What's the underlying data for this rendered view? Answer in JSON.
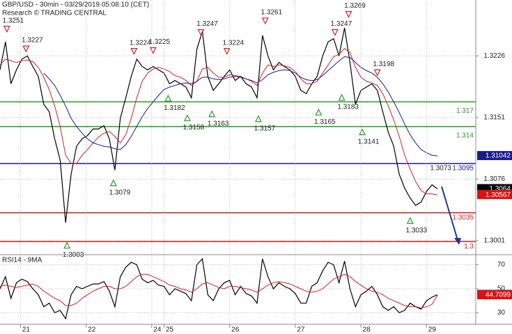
{
  "chart_data": [
    {
      "type": "line",
      "title": "GBP/USD - 30min - 03/29/2019 05:08:10 (CET)",
      "subtitle": "Research © TRADING CENTRAL",
      "xlim": [
        0,
        348
      ],
      "ylim": [
        1.2984,
        1.3294
      ],
      "yticks": [
        1.3226,
        1.3151,
        1.3076,
        1.3001
      ],
      "grid": true,
      "x": [
        0,
        4,
        8,
        12,
        16,
        20,
        24,
        28,
        32,
        36,
        40,
        44,
        48,
        52,
        56,
        60,
        64,
        68,
        72,
        76,
        80,
        84,
        88,
        92,
        96,
        100,
        104,
        108,
        112,
        116,
        120,
        124,
        128,
        132,
        136,
        140,
        144,
        148,
        152,
        156,
        160,
        164,
        168,
        172,
        176,
        180,
        184,
        188,
        192,
        196,
        200,
        204,
        208,
        212,
        216,
        220,
        224,
        228,
        232,
        236,
        240,
        244,
        248,
        252,
        256,
        260,
        264,
        268,
        272,
        276,
        280,
        284,
        288,
        292,
        296,
        300,
        304,
        308,
        312,
        316,
        320
      ],
      "series": [
        {
          "name": "GBP/USD",
          "color": "#000000",
          "label_color": "#000000",
          "values": [
            1.3209,
            1.3243,
            1.3192,
            1.3209,
            1.3222,
            1.3226,
            1.3213,
            1.3201,
            1.3167,
            1.3158,
            1.3125,
            1.3099,
            1.3023,
            1.3082,
            1.3116,
            1.3125,
            1.3129,
            1.3137,
            1.3137,
            1.3141,
            1.3125,
            1.3087,
            1.315,
            1.3175,
            1.3201,
            1.3222,
            1.3213,
            1.3209,
            1.3213,
            1.3209,
            1.3205,
            1.3192,
            1.3196,
            1.3192,
            1.3188,
            1.3175,
            1.3234,
            1.3256,
            1.3201,
            1.3184,
            1.3192,
            1.3201,
            1.3209,
            1.3196,
            1.3201,
            1.3192,
            1.3188,
            1.3175,
            1.3251,
            1.3226,
            1.3209,
            1.3218,
            1.3213,
            1.3209,
            1.3201,
            1.3184,
            1.318,
            1.3192,
            1.3201,
            1.3226,
            1.3243,
            1.3247,
            1.3226,
            1.326,
            1.3218,
            1.3167,
            1.3184,
            1.3188,
            1.3192,
            1.3184,
            1.3158,
            1.3133,
            1.3116,
            1.3082,
            1.3065,
            1.3053,
            1.3044,
            1.3048,
            1.3061,
            1.3069,
            1.3064
          ]
        },
        {
          "color": "#cc2222",
          "label_color": "#dd1111",
          "values": [
            1.3215,
            1.3222,
            1.322,
            1.3218,
            1.322,
            1.3221,
            1.3219,
            1.3212,
            1.32,
            1.3185,
            1.3165,
            1.314,
            1.3105,
            1.3095,
            1.3095,
            1.3105,
            1.3112,
            1.312,
            1.3127,
            1.3132,
            1.3134,
            1.3128,
            1.312,
            1.313,
            1.315,
            1.3175,
            1.3195,
            1.3205,
            1.321,
            1.3212,
            1.321,
            1.3207,
            1.3202,
            1.32,
            1.3196,
            1.319,
            1.3195,
            1.321,
            1.3212,
            1.3205,
            1.32,
            1.32,
            1.3203,
            1.3202,
            1.3201,
            1.3198,
            1.3195,
            1.319,
            1.3205,
            1.3215,
            1.3213,
            1.3215,
            1.3214,
            1.3212,
            1.3207,
            1.3198,
            1.3192,
            1.3192,
            1.3195,
            1.3205,
            1.3215,
            1.3225,
            1.3228,
            1.3235,
            1.323,
            1.3212,
            1.32,
            1.3195,
            1.3193,
            1.319,
            1.318,
            1.3165,
            1.3148,
            1.3128,
            1.3105,
            1.3088,
            1.3073,
            1.3062,
            1.3058,
            1.3058,
            1.30567
          ]
        },
        {
          "color": "#1a1a8c",
          "label_color": "#1a1a8c",
          "values": [
            null,
            null,
            null,
            null,
            null,
            null,
            null,
            null,
            1.3205,
            1.3198,
            1.319,
            1.3178,
            1.3165,
            1.315,
            1.314,
            1.3132,
            1.3125,
            1.312,
            1.3118,
            1.3116,
            1.3115,
            1.3113,
            1.3112,
            1.3118,
            1.3128,
            1.314,
            1.3152,
            1.3162,
            1.317,
            1.3178,
            1.3185,
            1.3188,
            1.319,
            1.3192,
            1.3193,
            1.3192,
            1.3195,
            1.32,
            1.32,
            1.3198,
            1.3197,
            1.3198,
            1.32,
            1.3201,
            1.32,
            1.3198,
            1.3196,
            1.3193,
            1.3197,
            1.3203,
            1.3206,
            1.3208,
            1.3209,
            1.3208,
            1.3205,
            1.32,
            1.3197,
            1.3196,
            1.3197,
            1.3202,
            1.3208,
            1.3214,
            1.322,
            1.3225,
            1.3224,
            1.3218,
            1.3212,
            1.3208,
            1.3205,
            1.32,
            1.3192,
            1.3182,
            1.317,
            1.3157,
            1.3143,
            1.313,
            1.312,
            1.3112,
            1.3108,
            1.3105,
            1.31042
          ]
        }
      ],
      "levels": [
        {
          "value": 1.317,
          "color": "#2a9a2a"
        },
        {
          "value": 1.314,
          "color": "#2a9a2a"
        },
        {
          "value": 1.3095,
          "color": "#1a1a8c"
        },
        {
          "value": 1.3035,
          "color": "#cc2222"
        },
        {
          "value": 1.3,
          "color": "#cc2222"
        }
      ],
      "note": "1.3073",
      "highs": {
        "color": "#cc2222",
        "x": [
          5,
          19,
          98,
          112,
          147,
          166,
          194,
          245,
          255,
          276
        ],
        "values": [
          1.3251,
          1.3227,
          1.3224,
          1.3225,
          1.3247,
          1.3224,
          1.3261,
          1.3247,
          1.3269,
          1.3198
        ]
      },
      "lows": {
        "color": "#2a9a2a",
        "x": [
          49,
          83,
          123,
          137,
          155,
          189,
          233,
          250,
          265,
          300
        ],
        "values": [
          1.3003,
          1.3079,
          1.3182,
          1.3158,
          1.3163,
          1.3157,
          1.3165,
          1.3183,
          1.3141,
          1.3033
        ]
      }
    },
    {
      "type": "line",
      "title": "RSI14 - 9MA",
      "xlim": [
        0,
        348
      ],
      "ylim": [
        20.4,
        78.4
      ],
      "yticks": [
        70,
        50,
        30
      ],
      "grid": true,
      "xticks": [
        {
          "value": 15,
          "label": "21"
        },
        {
          "value": 63,
          "label": "22"
        },
        {
          "value": 111,
          "label": "24"
        },
        {
          "value": 120,
          "label": "25"
        },
        {
          "value": 168,
          "label": "26"
        },
        {
          "value": 216,
          "label": "27"
        },
        {
          "value": 264,
          "label": "28"
        },
        {
          "value": 312,
          "label": "29"
        }
      ],
      "x": [
        0,
        4,
        8,
        12,
        16,
        20,
        24,
        28,
        32,
        36,
        40,
        44,
        48,
        52,
        56,
        60,
        64,
        68,
        72,
        76,
        80,
        84,
        88,
        92,
        96,
        100,
        104,
        108,
        112,
        116,
        120,
        124,
        128,
        132,
        136,
        140,
        144,
        148,
        152,
        156,
        160,
        164,
        168,
        172,
        176,
        180,
        184,
        188,
        192,
        196,
        200,
        204,
        208,
        212,
        216,
        220,
        224,
        228,
        232,
        236,
        240,
        244,
        248,
        252,
        256,
        260,
        264,
        268,
        272,
        276,
        280,
        284,
        288,
        292,
        296,
        300,
        304,
        308,
        312,
        316,
        320
      ],
      "series": [
        {
          "color": "#000000",
          "label_color": "#1a1a8c",
          "values": [
            50,
            60,
            42,
            55,
            58,
            56,
            50,
            45,
            35,
            38,
            30,
            32,
            25,
            45,
            52,
            50,
            52,
            54,
            54,
            56,
            48,
            35,
            60,
            68,
            72,
            70,
            58,
            55,
            57,
            53,
            52,
            45,
            50,
            48,
            46,
            40,
            70,
            75,
            45,
            40,
            50,
            55,
            57,
            45,
            52,
            46,
            44,
            38,
            75,
            60,
            50,
            55,
            52,
            50,
            46,
            38,
            38,
            52,
            55,
            65,
            72,
            70,
            55,
            73,
            50,
            35,
            45,
            48,
            52,
            45,
            35,
            32,
            35,
            30,
            32,
            38,
            35,
            33,
            40,
            43,
            45.0081
          ]
        },
        {
          "color": "#cc2222",
          "label_color": "#dd1111",
          "values": [
            52,
            53,
            52,
            51,
            52,
            53,
            54,
            52,
            48,
            45,
            42,
            40,
            36,
            36,
            38,
            42,
            45,
            48,
            50,
            52,
            52,
            50,
            50,
            52,
            56,
            60,
            62,
            62,
            60,
            58,
            56,
            53,
            52,
            50,
            49,
            47,
            50,
            54,
            55,
            53,
            51,
            50,
            52,
            52,
            51,
            50,
            49,
            47,
            50,
            53,
            55,
            56,
            55,
            54,
            52,
            50,
            48,
            47,
            48,
            50,
            54,
            58,
            60,
            62,
            60,
            56,
            53,
            50,
            48,
            47,
            45,
            42,
            40,
            38,
            36,
            35,
            35,
            34,
            35,
            37,
            44.7099
          ]
        }
      ]
    }
  ]
}
